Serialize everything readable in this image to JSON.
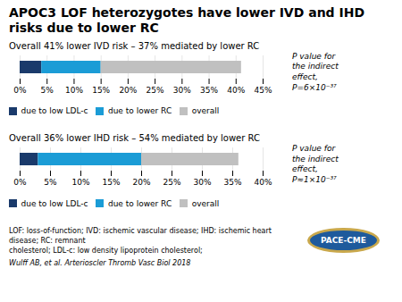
{
  "title": "APOC3 LOF heterozygotes have lower IVD and IHD risks due to lower RC",
  "annotations": [
    "LOF: loss-of-function; IVD: ischemic vascular disease; IHD: ischemic heart disease; RC: remnant\ncholesterol; LDL-c: low density lipoprotein cholesterol;",
    "PACE-CME",
    "Wulff AB, et al. Arterioscler Thromb Vasc Biol 2018"
  ],
  "chart_data": [
    {
      "type": "bar",
      "orientation": "horizontal",
      "stacked": true,
      "title": "Overall 41% lower IVD risk – 37% mediated by lower RC",
      "categories": [
        null
      ],
      "series": [
        {
          "name": "due to low LDL-c",
          "color": "#1a3a6b",
          "values": [
            4
          ]
        },
        {
          "name": "due to lower RC",
          "color": "#1b9cd6",
          "values": [
            11
          ]
        },
        {
          "name": "overall",
          "color": "#c0c0c0",
          "values": [
            26
          ]
        }
      ],
      "xlim": [
        0,
        45
      ],
      "xticks": [
        {
          "value": 0,
          "label": "0%"
        },
        {
          "value": 5,
          "label": "5%"
        },
        {
          "value": 10,
          "label": "10%"
        },
        {
          "value": 15,
          "label": "15%"
        },
        {
          "value": 20,
          "label": "20%"
        },
        {
          "value": 25,
          "label": "25%"
        },
        {
          "value": 30,
          "label": "30%"
        },
        {
          "value": 35,
          "label": "35%"
        },
        {
          "value": 40,
          "label": "40%"
        },
        {
          "value": 45,
          "label": "45%"
        }
      ],
      "grid": true,
      "tick_labels": "x",
      "legend": "bottom",
      "annotations": [
        "P value for\nthe indirect\neffect,\nP=6×10⁻³⁷"
      ]
    },
    {
      "type": "bar",
      "orientation": "horizontal",
      "stacked": true,
      "title": "Overall 36% lower IHD risk – 54% mediated by lower RC",
      "categories": [
        null
      ],
      "series": [
        {
          "name": "due to low LDL-c",
          "color": "#1a3a6b",
          "values": [
            3
          ]
        },
        {
          "name": "due to lower RC",
          "color": "#1b9cd6",
          "values": [
            17
          ]
        },
        {
          "name": "overall",
          "color": "#c0c0c0",
          "values": [
            16
          ]
        }
      ],
      "xlim": [
        0,
        40
      ],
      "xticks": [
        {
          "value": 0,
          "label": "0%"
        },
        {
          "value": 5,
          "label": "5%"
        },
        {
          "value": 10,
          "label": "10%"
        },
        {
          "value": 15,
          "label": "15%"
        },
        {
          "value": 20,
          "label": "20%"
        },
        {
          "value": 25,
          "label": "25%"
        },
        {
          "value": 30,
          "label": "30%"
        },
        {
          "value": 35,
          "label": "35%"
        },
        {
          "value": 40,
          "label": "40%"
        }
      ],
      "grid": true,
      "tick_labels": "x",
      "legend": "bottom",
      "annotations": [
        "P value for\nthe indirect\neffect,\nP≈1×10⁻³⁷"
      ]
    }
  ]
}
